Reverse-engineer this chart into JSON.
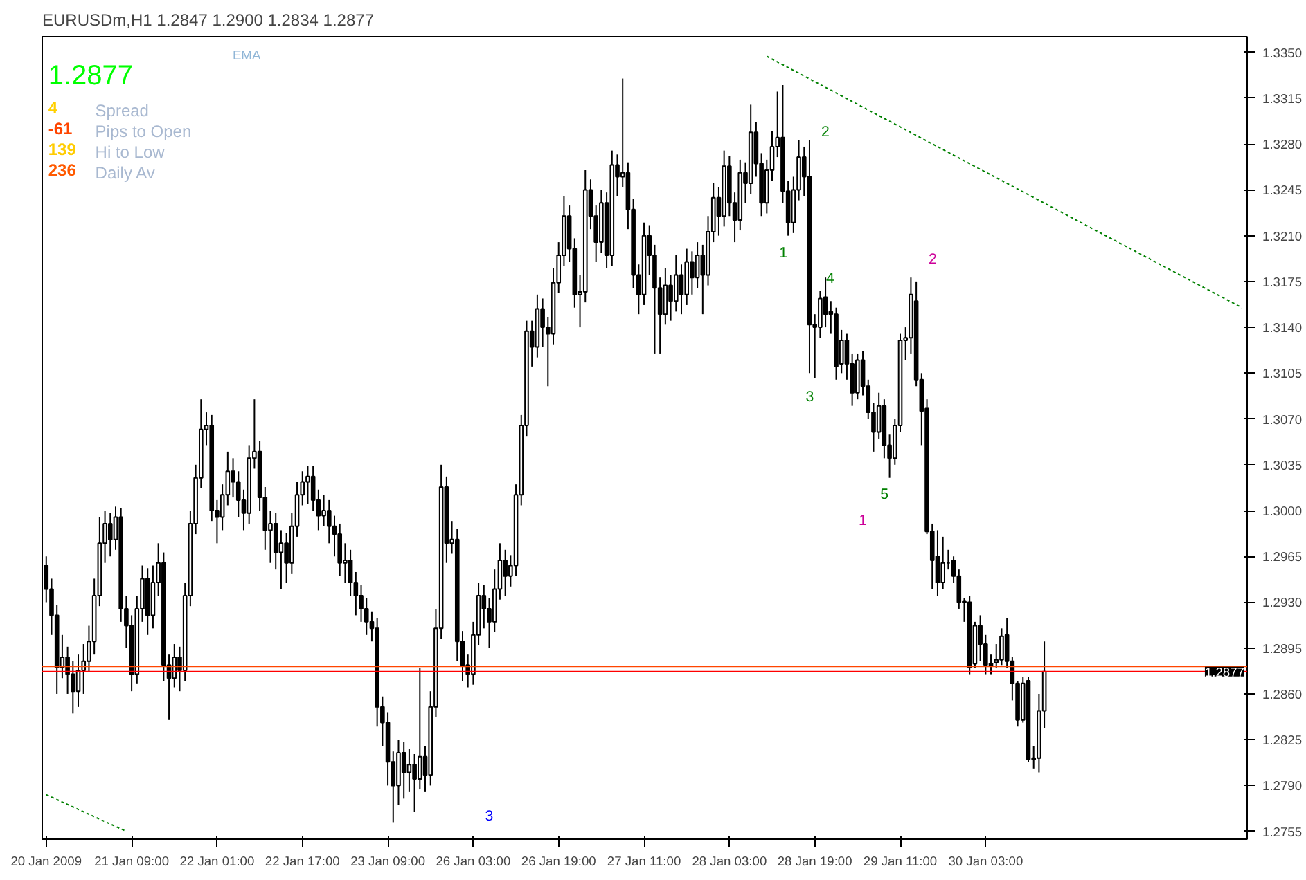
{
  "chart_data": {
    "type": "candlestick",
    "title": "EURUSDm,H1  1.2847 1.2900 1.2834 1.2877",
    "categories": [
      "20 Jan 2009",
      null,
      null,
      null,
      null,
      null,
      null,
      null,
      null,
      null,
      null,
      null,
      null,
      null,
      null,
      null,
      "21 Jan 09:00",
      null,
      null,
      null,
      null,
      null,
      null,
      null,
      null,
      null,
      null,
      null,
      null,
      null,
      null,
      null,
      "22 Jan 01:00",
      null,
      null,
      null,
      null,
      null,
      null,
      null,
      null,
      null,
      null,
      null,
      null,
      null,
      null,
      null,
      "22 Jan 17:00",
      null,
      null,
      null,
      null,
      null,
      null,
      null,
      null,
      null,
      null,
      null,
      null,
      null,
      null,
      null,
      "23 Jan 09:00",
      null,
      null,
      null,
      null,
      null,
      null,
      null,
      null,
      null,
      null,
      null,
      null,
      null,
      null,
      null,
      "26 Jan 03:00",
      null,
      null,
      null,
      null,
      null,
      null,
      null,
      null,
      null,
      null,
      null,
      null,
      null,
      null,
      null,
      "26 Jan 19:00",
      null,
      null,
      null,
      null,
      null,
      null,
      null,
      null,
      null,
      null,
      null,
      null,
      null,
      null,
      null,
      "27 Jan 11:00",
      null,
      null,
      null,
      null,
      null,
      null,
      null,
      null,
      null,
      null,
      null,
      null,
      null,
      null,
      null,
      "28 Jan 03:00",
      null,
      null,
      null,
      null,
      null,
      null,
      null,
      null,
      null,
      null,
      null,
      null,
      null,
      null,
      null,
      "28 Jan 19:00",
      null,
      null,
      null,
      null,
      null,
      null,
      null,
      null,
      null,
      null,
      null,
      null,
      null,
      null,
      null,
      "29 Jan 11:00",
      null,
      null,
      null,
      null,
      null,
      null,
      null,
      null,
      null,
      null,
      null,
      null,
      null,
      null,
      null,
      "30 Jan 03:00",
      null,
      null,
      null,
      null,
      null,
      null,
      null,
      null,
      null,
      null,
      null,
      null,
      null,
      null,
      null,
      null,
      null,
      null,
      null,
      null,
      null,
      null,
      null,
      null,
      null,
      null,
      null,
      null,
      null,
      null,
      null,
      null,
      null,
      null,
      null,
      null,
      null,
      null,
      null,
      null,
      null,
      null,
      null,
      null,
      null,
      null,
      null,
      null,
      null
    ],
    "ohlc": [
      [
        1.2958,
        1.2965,
        1.293,
        1.294
      ],
      [
        1.294,
        1.2948,
        1.2905,
        1.292
      ],
      [
        1.292,
        1.2928,
        1.286,
        1.288
      ],
      [
        1.288,
        1.2905,
        1.2872,
        1.2888
      ],
      [
        1.2888,
        1.2896,
        1.286,
        1.2875
      ],
      [
        1.2875,
        1.2885,
        1.2845,
        1.2862
      ],
      [
        1.2862,
        1.289,
        1.285,
        1.2878
      ],
      [
        1.2878,
        1.2898,
        1.286,
        1.2885
      ],
      [
        1.2885,
        1.2912,
        1.2877,
        1.29
      ],
      [
        1.29,
        1.2948,
        1.289,
        1.2935
      ],
      [
        1.2935,
        1.2995,
        1.2927,
        1.2975
      ],
      [
        1.2975,
        1.3,
        1.296,
        1.299
      ],
      [
        1.299,
        1.2998,
        1.2965,
        1.2978
      ],
      [
        1.2978,
        1.3003,
        1.297,
        1.2995
      ],
      [
        1.2995,
        1.3002,
        1.2915,
        1.2925
      ],
      [
        1.2925,
        1.2935,
        1.2895,
        1.2912
      ],
      [
        1.2912,
        1.292,
        1.2862,
        1.2875
      ],
      [
        1.2875,
        1.2935,
        1.2868,
        1.2925
      ],
      [
        1.2925,
        1.2958,
        1.2915,
        1.2948
      ],
      [
        1.2948,
        1.2956,
        1.2905,
        1.292
      ],
      [
        1.292,
        1.2958,
        1.291,
        1.2945
      ],
      [
        1.2945,
        1.2975,
        1.2935,
        1.296
      ],
      [
        1.296,
        1.2968,
        1.287,
        1.2882
      ],
      [
        1.2882,
        1.289,
        1.284,
        1.2872
      ],
      [
        1.2872,
        1.2898,
        1.2865,
        1.2888
      ],
      [
        1.2888,
        1.2896,
        1.2862,
        1.2878
      ],
      [
        1.2878,
        1.2945,
        1.287,
        1.2935
      ],
      [
        1.2935,
        1.3,
        1.2927,
        1.299
      ],
      [
        1.299,
        1.3035,
        1.2982,
        1.3025
      ],
      [
        1.3025,
        1.3085,
        1.3017,
        1.3062
      ],
      [
        1.3062,
        1.3075,
        1.305,
        1.3065
      ],
      [
        1.3065,
        1.3073,
        1.2992,
        1.3
      ],
      [
        1.3,
        1.3008,
        1.2975,
        1.2995
      ],
      [
        1.2995,
        1.302,
        1.2985,
        1.3012
      ],
      [
        1.3012,
        1.3045,
        1.3004,
        1.303
      ],
      [
        1.303,
        1.304,
        1.301,
        1.3022
      ],
      [
        1.3022,
        1.303,
        1.2995,
        1.3008
      ],
      [
        1.3008,
        1.3016,
        1.2985,
        1.2998
      ],
      [
        1.2998,
        1.305,
        1.299,
        1.304
      ],
      [
        1.304,
        1.3085,
        1.3032,
        1.3045
      ],
      [
        1.3045,
        1.3053,
        1.3,
        1.301
      ],
      [
        1.301,
        1.3018,
        1.297,
        1.2985
      ],
      [
        1.2985,
        1.3,
        1.296,
        1.299
      ],
      [
        1.299,
        1.2998,
        1.2955,
        1.2968
      ],
      [
        1.2968,
        1.2985,
        1.294,
        1.2975
      ],
      [
        1.2975,
        1.2983,
        1.2945,
        1.296
      ],
      [
        1.296,
        1.2998,
        1.2952,
        1.2988
      ],
      [
        1.2988,
        1.3022,
        1.298,
        1.3012
      ],
      [
        1.3012,
        1.303,
        1.3004,
        1.3022
      ],
      [
        1.3022,
        1.3034,
        1.3005,
        1.3026
      ],
      [
        1.3026,
        1.3034,
        1.3,
        1.3008
      ],
      [
        1.3008,
        1.3016,
        1.2985,
        1.2996
      ],
      [
        1.2996,
        1.3012,
        1.2988,
        1.3
      ],
      [
        1.3,
        1.3008,
        1.2975,
        1.2988
      ],
      [
        1.2988,
        1.2996,
        1.2965,
        1.2982
      ],
      [
        1.2982,
        1.299,
        1.295,
        1.296
      ],
      [
        1.296,
        1.2975,
        1.2945,
        1.2962
      ],
      [
        1.2962,
        1.297,
        1.2935,
        1.2945
      ],
      [
        1.2945,
        1.2953,
        1.292,
        1.2935
      ],
      [
        1.2935,
        1.2943,
        1.2915,
        1.2925
      ],
      [
        1.2925,
        1.2933,
        1.2905,
        1.2915
      ],
      [
        1.2915,
        1.2923,
        1.29,
        1.291
      ],
      [
        1.291,
        1.2918,
        1.2835,
        1.285
      ],
      [
        1.285,
        1.2858,
        1.282,
        1.2838
      ],
      [
        1.2838,
        1.2846,
        1.279,
        1.2808
      ],
      [
        1.2808,
        1.2816,
        1.2762,
        1.279
      ],
      [
        1.279,
        1.2825,
        1.2775,
        1.2815
      ],
      [
        1.2815,
        1.2823,
        1.278,
        1.28
      ],
      [
        1.28,
        1.2818,
        1.2785,
        1.2806
      ],
      [
        1.2806,
        1.2814,
        1.277,
        1.2795
      ],
      [
        1.2795,
        1.288,
        1.2787,
        1.2812
      ],
      [
        1.2812,
        1.282,
        1.2785,
        1.2798
      ],
      [
        1.2798,
        1.2862,
        1.279,
        1.285
      ],
      [
        1.285,
        1.2925,
        1.2842,
        1.291
      ],
      [
        1.291,
        1.3035,
        1.2902,
        1.3018
      ],
      [
        1.3018,
        1.3026,
        1.296,
        1.2975
      ],
      [
        1.2975,
        1.2992,
        1.2967,
        1.2978
      ],
      [
        1.2978,
        1.2986,
        1.2885,
        1.29
      ],
      [
        1.29,
        1.2908,
        1.287,
        1.2882
      ],
      [
        1.2882,
        1.289,
        1.2865,
        1.2875
      ],
      [
        1.2875,
        1.2915,
        1.2867,
        1.2905
      ],
      [
        1.2905,
        1.2945,
        1.2897,
        1.2935
      ],
      [
        1.2935,
        1.2943,
        1.291,
        1.2925
      ],
      [
        1.2925,
        1.2933,
        1.2895,
        1.2915
      ],
      [
        1.2915,
        1.2955,
        1.2907,
        1.294
      ],
      [
        1.294,
        1.2975,
        1.2932,
        1.2962
      ],
      [
        1.2962,
        1.297,
        1.2935,
        1.295
      ],
      [
        1.295,
        1.2966,
        1.2942,
        1.2958
      ],
      [
        1.2958,
        1.302,
        1.295,
        1.3012
      ],
      [
        1.3012,
        1.3073,
        1.3004,
        1.3065
      ],
      [
        1.3065,
        1.3145,
        1.3057,
        1.3137
      ],
      [
        1.3137,
        1.3145,
        1.311,
        1.3125
      ],
      [
        1.3125,
        1.3165,
        1.3117,
        1.3154
      ],
      [
        1.3154,
        1.3162,
        1.3125,
        1.314
      ],
      [
        1.314,
        1.3148,
        1.3095,
        1.3135
      ],
      [
        1.3135,
        1.3185,
        1.3127,
        1.3174
      ],
      [
        1.3174,
        1.3205,
        1.3166,
        1.3195
      ],
      [
        1.3195,
        1.324,
        1.3187,
        1.3225
      ],
      [
        1.3225,
        1.3233,
        1.319,
        1.32
      ],
      [
        1.32,
        1.3208,
        1.3155,
        1.3165
      ],
      [
        1.3165,
        1.318,
        1.314,
        1.3167
      ],
      [
        1.3167,
        1.326,
        1.3159,
        1.3245
      ],
      [
        1.3245,
        1.3253,
        1.3215,
        1.3225
      ],
      [
        1.3225,
        1.3233,
        1.319,
        1.3205
      ],
      [
        1.3205,
        1.3245,
        1.3197,
        1.3235
      ],
      [
        1.3235,
        1.3243,
        1.3185,
        1.3195
      ],
      [
        1.3195,
        1.3275,
        1.3187,
        1.3264
      ],
      [
        1.3264,
        1.3272,
        1.324,
        1.3255
      ],
      [
        1.3255,
        1.333,
        1.3247,
        1.3258
      ],
      [
        1.3258,
        1.3266,
        1.3215,
        1.323
      ],
      [
        1.323,
        1.3238,
        1.317,
        1.318
      ],
      [
        1.318,
        1.3188,
        1.315,
        1.3165
      ],
      [
        1.3165,
        1.322,
        1.3157,
        1.321
      ],
      [
        1.321,
        1.3218,
        1.318,
        1.3195
      ],
      [
        1.3195,
        1.3203,
        1.312,
        1.317
      ],
      [
        1.317,
        1.3178,
        1.312,
        1.315
      ],
      [
        1.315,
        1.3185,
        1.3142,
        1.3172
      ],
      [
        1.3172,
        1.318,
        1.3145,
        1.316
      ],
      [
        1.316,
        1.3195,
        1.3152,
        1.318
      ],
      [
        1.318,
        1.3188,
        1.315,
        1.3165
      ],
      [
        1.3165,
        1.32,
        1.3157,
        1.319
      ],
      [
        1.319,
        1.3198,
        1.3165,
        1.3178
      ],
      [
        1.3178,
        1.3205,
        1.317,
        1.3195
      ],
      [
        1.3195,
        1.3203,
        1.315,
        1.318
      ],
      [
        1.318,
        1.3225,
        1.3172,
        1.3213
      ],
      [
        1.3213,
        1.325,
        1.3205,
        1.3239
      ],
      [
        1.3239,
        1.3247,
        1.321,
        1.3225
      ],
      [
        1.3225,
        1.3275,
        1.3217,
        1.3263
      ],
      [
        1.3263,
        1.3271,
        1.3225,
        1.3235
      ],
      [
        1.3235,
        1.3243,
        1.3205,
        1.3222
      ],
      [
        1.3222,
        1.3268,
        1.3214,
        1.3258
      ],
      [
        1.3258,
        1.3266,
        1.3235,
        1.325
      ],
      [
        1.325,
        1.331,
        1.3242,
        1.3289
      ],
      [
        1.3289,
        1.3297,
        1.3255,
        1.3265
      ],
      [
        1.3265,
        1.3273,
        1.3225,
        1.3235
      ],
      [
        1.3235,
        1.3268,
        1.3227,
        1.326
      ],
      [
        1.326,
        1.329,
        1.3252,
        1.3278
      ],
      [
        1.3278,
        1.332,
        1.327,
        1.3285
      ],
      [
        1.3285,
        1.3325,
        1.3235,
        1.3244
      ],
      [
        1.3244,
        1.3252,
        1.321,
        1.322
      ],
      [
        1.322,
        1.3255,
        1.3212,
        1.3245
      ],
      [
        1.3245,
        1.3283,
        1.3237,
        1.327
      ],
      [
        1.327,
        1.3278,
        1.324,
        1.3255
      ],
      [
        1.3255,
        1.3283,
        1.3105,
        1.3142
      ],
      [
        1.3142,
        1.315,
        1.3101,
        1.314
      ],
      [
        1.314,
        1.3168,
        1.3132,
        1.3162
      ],
      [
        1.3163,
        1.3178,
        1.314,
        1.315
      ],
      [
        1.3152,
        1.316,
        1.3135,
        1.315
      ],
      [
        1.315,
        1.3155,
        1.31,
        1.311
      ],
      [
        1.3112,
        1.3138,
        1.3105,
        1.313
      ],
      [
        1.313,
        1.3135,
        1.31,
        1.3112
      ],
      [
        1.3112,
        1.312,
        1.308,
        1.309
      ],
      [
        1.309,
        1.312,
        1.3085,
        1.3115
      ],
      [
        1.3115,
        1.3122,
        1.3088,
        1.3095
      ],
      [
        1.3095,
        1.31,
        1.307,
        1.3075
      ],
      [
        1.3075,
        1.3082,
        1.3045,
        1.306
      ],
      [
        1.306,
        1.309,
        1.3055,
        1.308
      ],
      [
        1.308,
        1.3085,
        1.304,
        1.305
      ],
      [
        1.305,
        1.3058,
        1.3025,
        1.304
      ],
      [
        1.304,
        1.307,
        1.3035,
        1.3065
      ],
      [
        1.3065,
        1.3135,
        1.306,
        1.313
      ],
      [
        1.313,
        1.314,
        1.3115,
        1.3132
      ],
      [
        1.3132,
        1.3178,
        1.312,
        1.3165
      ],
      [
        1.316,
        1.3175,
        1.3095,
        1.31
      ],
      [
        1.31,
        1.3105,
        1.305,
        1.3076
      ],
      [
        1.3078,
        1.3085,
        1.2982,
        1.2984
      ],
      [
        1.2984,
        1.299,
        1.294,
        1.2962
      ],
      [
        1.2965,
        1.2985,
        1.2935,
        1.2945
      ],
      [
        1.2945,
        1.298,
        1.294,
        1.296
      ],
      [
        1.296,
        1.297,
        1.2955,
        1.296
      ],
      [
        1.2962,
        1.2965,
        1.2945,
        1.295
      ],
      [
        1.295,
        1.2955,
        1.2925,
        1.293
      ],
      [
        1.293,
        1.2933,
        1.2915,
        1.2931
      ],
      [
        1.293,
        1.2935,
        1.2875,
        1.288
      ],
      [
        1.2883,
        1.2915,
        1.288,
        1.2912
      ],
      [
        1.2912,
        1.292,
        1.2885,
        1.2898
      ],
      [
        1.2898,
        1.2905,
        1.2875,
        1.2882
      ],
      [
        1.2882,
        1.289,
        1.2875,
        1.2883
      ],
      [
        1.2884,
        1.2898,
        1.288,
        1.2886
      ],
      [
        1.2886,
        1.291,
        1.2882,
        1.2904
      ],
      [
        1.2905,
        1.2918,
        1.288,
        1.2885
      ],
      [
        1.2885,
        1.2888,
        1.2855,
        1.2868
      ],
      [
        1.2868,
        1.287,
        1.2835,
        1.284
      ],
      [
        1.284,
        1.2873,
        1.2838,
        1.2868
      ],
      [
        1.287,
        1.2873,
        1.2808,
        1.281
      ],
      [
        1.281,
        1.282,
        1.2803,
        1.2811
      ],
      [
        1.2811,
        1.286,
        1.28,
        1.2847
      ],
      [
        1.2847,
        1.29,
        1.2834,
        1.2877
      ],
      null,
      null,
      null,
      null,
      null,
      null,
      null,
      null,
      null,
      null,
      null,
      null,
      null,
      null,
      null,
      null,
      null,
      null,
      null,
      null,
      null,
      null,
      null,
      null,
      null,
      null,
      null,
      null,
      null,
      null,
      null,
      null,
      null,
      null,
      null,
      null,
      null,
      null
    ],
    "series": [
      {
        "type": "line",
        "color": "#008000",
        "line_style": "dashed",
        "values": [
          null,
          null,
          null,
          null,
          null,
          null,
          null,
          null,
          null,
          null,
          null,
          null,
          null,
          null,
          null,
          null,
          null,
          null,
          null,
          null,
          null,
          null,
          null,
          null,
          null,
          null,
          null,
          null,
          null,
          null,
          null,
          null,
          null,
          null,
          null,
          null,
          null,
          null,
          null,
          null,
          null,
          null,
          null,
          null,
          null,
          null,
          null,
          null,
          null,
          null,
          null,
          null,
          null,
          null,
          null,
          null,
          null,
          null,
          null,
          null,
          null,
          null,
          null,
          null,
          null,
          null,
          null,
          null,
          null,
          null,
          null,
          null,
          null,
          null,
          null,
          null,
          null,
          null,
          null,
          null,
          null,
          null,
          null,
          null,
          null,
          null,
          null,
          null,
          null,
          null,
          null,
          null,
          null,
          null,
          null,
          null,
          null,
          null,
          null,
          null,
          null,
          null,
          null,
          null,
          null,
          null,
          null,
          null,
          null,
          null,
          null,
          null,
          null,
          null,
          null,
          null,
          null,
          null,
          null,
          null,
          null,
          null,
          null,
          null,
          null,
          null,
          null,
          null,
          null,
          null,
          null,
          null,
          null,
          null,
          null,
          1.3347,
          null,
          null,
          null,
          null,
          null,
          null,
          null,
          null,
          null,
          null,
          null,
          null,
          null,
          null,
          null,
          null,
          null,
          null,
          null,
          null,
          null,
          null,
          null,
          null,
          null,
          null,
          null,
          null,
          null,
          null,
          null,
          null,
          null,
          null,
          null,
          null,
          null,
          null,
          null,
          null,
          null,
          null,
          null,
          null,
          null,
          null,
          null,
          null,
          null,
          null,
          null,
          null,
          null,
          null,
          null,
          null,
          null,
          null,
          null,
          null,
          null,
          null,
          null,
          null,
          null,
          null,
          null,
          null,
          null,
          null,
          null,
          null,
          null,
          null,
          null,
          null,
          null,
          null,
          null,
          null,
          null,
          null,
          null,
          null,
          null,
          null,
          null,
          null,
          1.3155,
          null
        ]
      },
      {
        "type": "line",
        "color": "#008000",
        "line_style": "dashed",
        "values": [
          1.2783,
          null,
          null,
          null,
          null,
          null,
          null,
          null,
          null,
          null,
          null,
          null,
          null,
          null,
          null,
          1.2755,
          null,
          null,
          null,
          null,
          null,
          null,
          null,
          null,
          null,
          null,
          null,
          null,
          null,
          null,
          null,
          null,
          null,
          null,
          null,
          null,
          null,
          null,
          null,
          null,
          null,
          null,
          null,
          null,
          null,
          null,
          null,
          null,
          null,
          null,
          null,
          null,
          null,
          null,
          null,
          null,
          null,
          null,
          null,
          null,
          null,
          null,
          null,
          null,
          null,
          null,
          null,
          null,
          null,
          null,
          null,
          null,
          null,
          null,
          null,
          null,
          null,
          null,
          null,
          null,
          null,
          null,
          null,
          null,
          null,
          null,
          null,
          null,
          null,
          null,
          null,
          null,
          null,
          null,
          null,
          null,
          null,
          null,
          null,
          null,
          null,
          null,
          null,
          null,
          null,
          null,
          null,
          null,
          null,
          null,
          null,
          null,
          null,
          null,
          null,
          null,
          null,
          null,
          null,
          null,
          null,
          null,
          null,
          null,
          null,
          null,
          null,
          null,
          null,
          null,
          null,
          null,
          null,
          null,
          null,
          null,
          null,
          null,
          null,
          null,
          null,
          null,
          null,
          null,
          null,
          null,
          null,
          null,
          null,
          null,
          null,
          null,
          null,
          null,
          null,
          null,
          null,
          null,
          null,
          null,
          null,
          null,
          null,
          null,
          null,
          null,
          null,
          null,
          null,
          null,
          null,
          null,
          null,
          null,
          null,
          null,
          null,
          null,
          null,
          null,
          null,
          null,
          null,
          null,
          null,
          null,
          null,
          null,
          null,
          null,
          null,
          null,
          null,
          null,
          null,
          null,
          null,
          null,
          null,
          null,
          null,
          null,
          null,
          null,
          null,
          null,
          null,
          null,
          null,
          null,
          null,
          null,
          null,
          null,
          null,
          null,
          null,
          null,
          null,
          null,
          null,
          null,
          null,
          null,
          null,
          null
        ]
      }
    ],
    "ylim": [
      1.2749,
      1.3362
    ],
    "yticks": [
      1.2755,
      {
        "value": 1.279,
        "label": "1.2790"
      },
      1.2825,
      {
        "value": 1.286,
        "label": "1.2860"
      },
      1.2895,
      {
        "value": 1.293,
        "label": "1.2930"
      },
      1.2965,
      {
        "value": 1.3,
        "label": "1.3000"
      },
      1.3035,
      {
        "value": 1.307,
        "label": "1.3070"
      },
      1.3105,
      {
        "value": 1.314,
        "label": "1.3140"
      },
      1.3175,
      {
        "value": 1.321,
        "label": "1.3210"
      },
      1.3245,
      {
        "value": 1.328,
        "label": "1.3280"
      },
      1.3315,
      {
        "value": 1.335,
        "label": "1.3350"
      }
    ],
    "ref_lines": [
      {
        "axis": "y",
        "value": 1.2881,
        "label": null,
        "color": "#ff4500"
      },
      {
        "axis": "y",
        "value": 1.2877,
        "label": "1.2877",
        "color": "#ff0000"
      }
    ],
    "annotations": [
      "EMA",
      "1.2877",
      "4",
      "Spread",
      "-61",
      "Pips to Open",
      "139",
      "Hi to Low",
      "236",
      "Daily Av",
      "1",
      "2",
      "3",
      "4",
      "5",
      "1",
      "2",
      "3"
    ],
    "grid": false
  }
}
